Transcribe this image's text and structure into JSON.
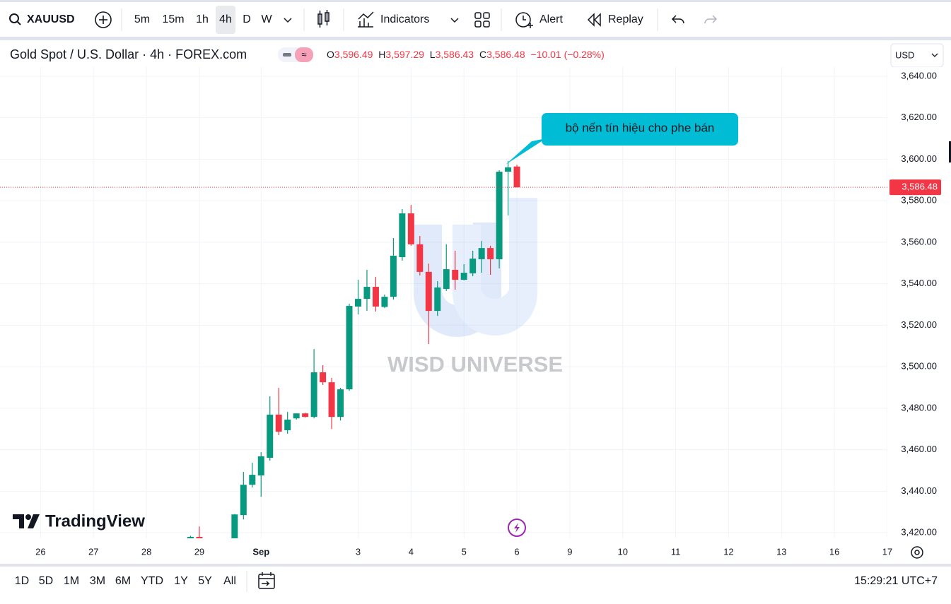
{
  "toolbar": {
    "symbol": "XAUUSD",
    "intervals": [
      "5m",
      "15m",
      "1h",
      "4h",
      "D",
      "W"
    ],
    "indicators": "Indicators",
    "alert": "Alert",
    "replay": "Replay"
  },
  "chart_data": {
    "type": "candlestick",
    "title": "Gold Spot / U.S. Dollar · 4h · FOREX.com",
    "legend": [
      {
        "key": "O",
        "value": "3,596.49"
      },
      {
        "key": "H",
        "value": "3,597.29"
      },
      {
        "key": "L",
        "value": "3,586.43"
      },
      {
        "key": "C",
        "value": "3,586.48"
      }
    ],
    "change": "−10.01 (−0.28%)",
    "currency": "USD",
    "up_color": "#089981",
    "down_color": "#f23645",
    "open": [
      3417.2,
      3418.0,
      null,
      null,
      null,
      3416.9,
      3428.5,
      3443.1,
      3447.6,
      3456.1,
      3476.9,
      3469.4,
      3475.1,
      3477.5,
      3475.8,
      3497.3,
      3492.5,
      3475.8,
      3489.1,
      3529.0,
      3532.7,
      3538.5,
      3528.8,
      3533.7,
      3552.8,
      3573.9,
      3559.0,
      3545.7,
      3526.9,
      3537.5,
      3546.7,
      3541.9,
      3545.0,
      3551.8,
      3557.2,
      3551.8,
      3594.0,
      3596.49
    ],
    "high": [
      3418.5,
      3423.0,
      null,
      null,
      null,
      3429.0,
      3449.3,
      3453.7,
      3458.8,
      3485.7,
      3489.8,
      3478.2,
      3477.5,
      3477.8,
      3508.5,
      3500.7,
      3494.6,
      3489.8,
      3530.3,
      3541.9,
      3546.7,
      3543.3,
      3534.8,
      3562.0,
      3576.0,
      3578.0,
      3563.0,
      3549.7,
      3541.2,
      3559.0,
      3555.9,
      3549.4,
      3555.9,
      3560.6,
      3558.3,
      3594.7,
      3599.1,
      3597.29
    ],
    "low": [
      3416.8,
      3416.9,
      null,
      null,
      null,
      3416.0,
      3426.4,
      3441.8,
      3437.3,
      3454.7,
      3467.0,
      3467.7,
      3474.5,
      3475.5,
      3475.1,
      3491.2,
      3470.0,
      3474.1,
      3488.4,
      3525.2,
      3526.9,
      3526.6,
      3528.3,
      3532.4,
      3551.1,
      3558.3,
      3544.0,
      3510.9,
      3524.5,
      3536.5,
      3537.1,
      3541.6,
      3543.6,
      3545.3,
      3544.3,
      3547.4,
      3572.9,
      3586.43
    ],
    "close": [
      3418.0,
      3417.2,
      null,
      null,
      null,
      3428.8,
      3443.1,
      3447.9,
      3456.8,
      3476.9,
      3468.7,
      3474.5,
      3477.5,
      3475.8,
      3497.3,
      3492.5,
      3475.8,
      3489.1,
      3529.3,
      3532.7,
      3538.5,
      3529.0,
      3533.7,
      3553.5,
      3573.9,
      3559.0,
      3545.7,
      3526.9,
      3538.2,
      3547.0,
      3541.9,
      3545.3,
      3552.1,
      3557.2,
      3551.8,
      3594.0,
      3596.1,
      3586.48
    ],
    "xlim": [
      -21.6,
      79
    ],
    "xticks": [
      {
        "value": -17,
        "label": "26"
      },
      {
        "value": -11,
        "label": "27"
      },
      {
        "value": -5,
        "label": "28"
      },
      {
        "value": 1,
        "label": "29"
      },
      {
        "value": 8,
        "label": "Sep"
      },
      {
        "value": 19,
        "label": "3"
      },
      {
        "value": 25,
        "label": "4"
      },
      {
        "value": 31,
        "label": "5"
      },
      {
        "value": 37,
        "label": "6"
      },
      {
        "value": 43,
        "label": "9"
      },
      {
        "value": 49,
        "label": "10"
      },
      {
        "value": 55,
        "label": "11"
      },
      {
        "value": 61,
        "label": "12"
      },
      {
        "value": 67,
        "label": "13"
      },
      {
        "value": 73,
        "label": "16"
      },
      {
        "value": 79,
        "label": "17"
      }
    ],
    "ylim": [
      3417.3,
      3644.4
    ],
    "yticks": [
      {
        "value": 3420,
        "label": "3,420.00"
      },
      {
        "value": 3440,
        "label": "3,440.00"
      },
      {
        "value": 3460,
        "label": "3,460.00"
      },
      {
        "value": 3480,
        "label": "3,480.00"
      },
      {
        "value": 3500,
        "label": "3,500.00"
      },
      {
        "value": 3520,
        "label": "3,520.00"
      },
      {
        "value": 3540,
        "label": "3,540.00"
      },
      {
        "value": 3560,
        "label": "3,560.00"
      },
      {
        "value": 3580,
        "label": "3,580.00"
      },
      {
        "value": 3600,
        "label": "3,600.00"
      },
      {
        "value": 3620,
        "label": "3,620.00"
      },
      {
        "value": 3640,
        "label": "3,640.00"
      }
    ],
    "last_price": {
      "value": 3586.48,
      "label": "3,586.48"
    },
    "grid": true,
    "annotation": "bộ nến tín hiệu cho phe bán",
    "watermark": "WISD UNIVERSE",
    "logo": "TradingView"
  },
  "bottom_bar": {
    "ranges": [
      "1D",
      "5D",
      "1M",
      "3M",
      "6M",
      "YTD",
      "1Y",
      "5Y",
      "All"
    ],
    "clock": "15:29:21 UTC+7"
  }
}
